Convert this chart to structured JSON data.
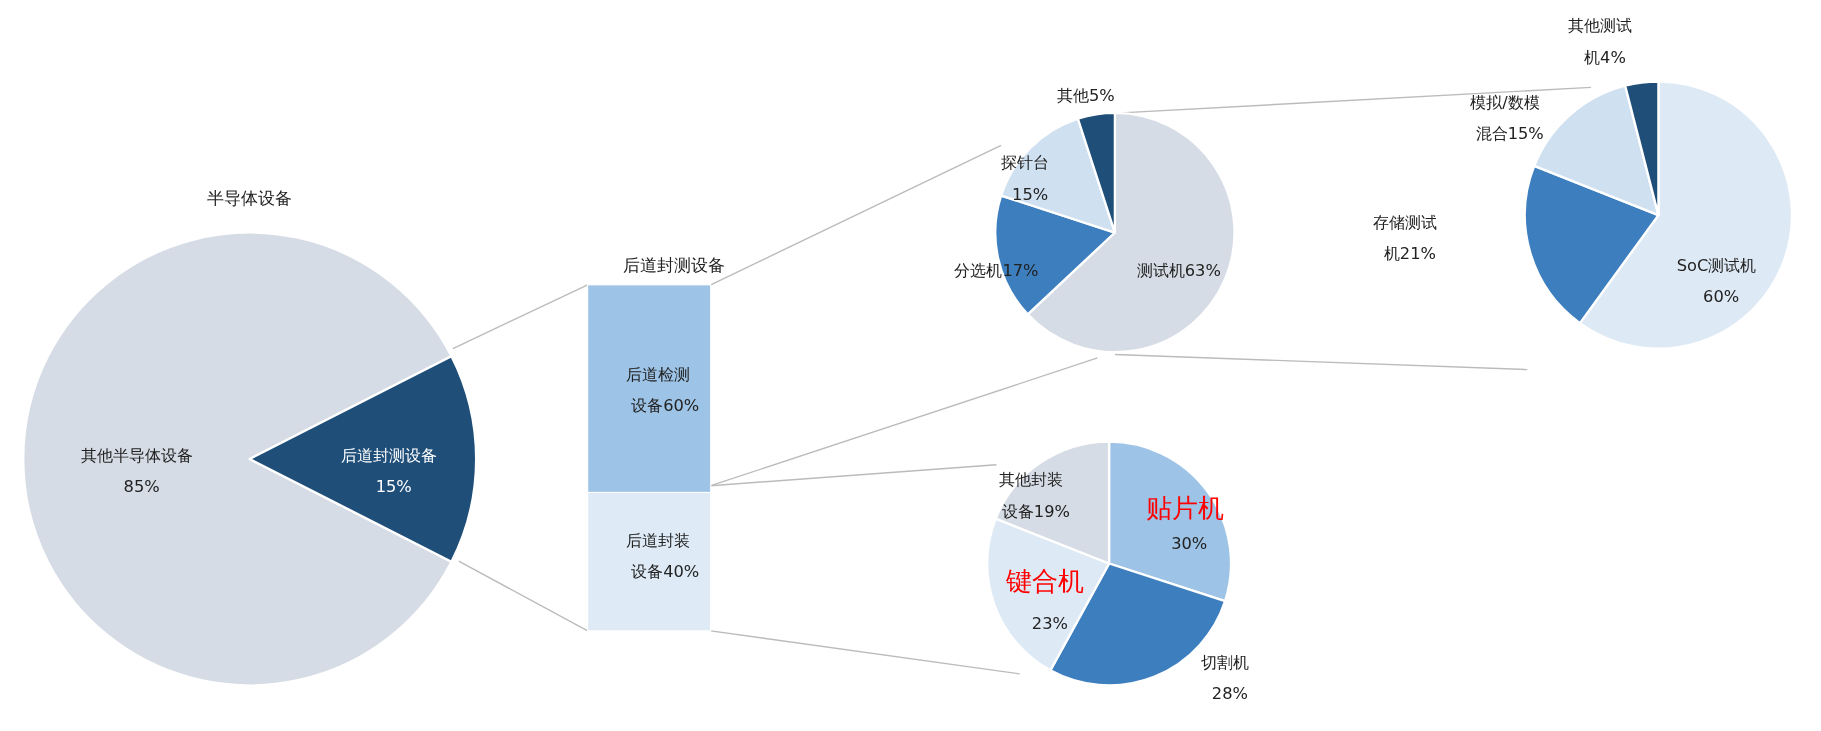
{
  "chart_data": [
    {
      "type": "pie",
      "title": "半导体设备",
      "categories": [
        "其他半导体设备",
        "后道封测设备"
      ],
      "values": [
        85,
        15
      ],
      "colors": [
        "#d6dce5",
        "#1f4e79"
      ],
      "value_labels": [
        "85%",
        "15%"
      ]
    },
    {
      "type": "bar",
      "title": "后道封测设备",
      "stacked": true,
      "categories": [
        null
      ],
      "series": [
        {
          "name": "后道封装设备",
          "color": "#deebf7",
          "values": [
            40
          ],
          "value_labels": [
            "40%"
          ]
        },
        {
          "name": "后道检测设备",
          "color": "#9dc3e6",
          "values": [
            60
          ],
          "value_labels": [
            "60%"
          ]
        }
      ]
    },
    {
      "type": "pie",
      "categories": [
        "测试机",
        "分选机",
        "探针台",
        "其他"
      ],
      "values": [
        63,
        17,
        15,
        5
      ],
      "colors": [
        "#d6dce5",
        "#3d7ebf",
        "#cfe0f1",
        "#1f4e79"
      ],
      "value_labels": [
        "63%",
        "17%",
        "15%",
        "5%"
      ]
    },
    {
      "type": "pie",
      "categories": [
        "SoC测试机",
        "存储测试机",
        "模拟/数模混合",
        "其他测试机"
      ],
      "values": [
        60,
        21,
        15,
        4
      ],
      "colors": [
        "#dde9f5",
        "#3d7ebf",
        "#cfe0f1",
        "#1f4e79"
      ],
      "value_labels": [
        "60%",
        "21%",
        "15%",
        "4%"
      ]
    },
    {
      "type": "pie",
      "categories": [
        "贴片机",
        "切割机",
        "键合机",
        "其他封装设备"
      ],
      "values": [
        30,
        28,
        23,
        19
      ],
      "colors": [
        "#9dc3e6",
        "#3d7ebf",
        "#dde9f5",
        "#d6dce5"
      ],
      "value_labels": [
        "30%",
        "28%",
        "23%",
        "19%"
      ]
    }
  ]
}
